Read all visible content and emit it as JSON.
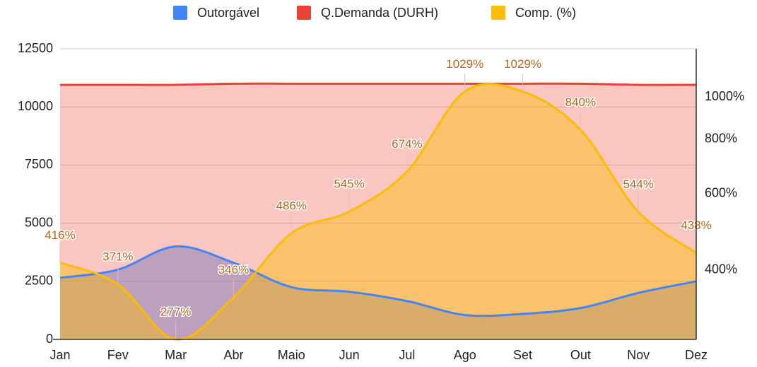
{
  "chart_data": {
    "type": "area",
    "categories": [
      "Jan",
      "Fev",
      "Mar",
      "Abr",
      "Maio",
      "Jun",
      "Jul",
      "Ago",
      "Set",
      "Out",
      "Nov",
      "Dez"
    ],
    "series": [
      {
        "name": "Outorgável",
        "color": "#4285f4",
        "values": [
          2650,
          3000,
          4000,
          3300,
          2250,
          2050,
          1650,
          1050,
          1100,
          1350,
          2000,
          2500
        ]
      },
      {
        "name": "Q.Demanda (DURH)",
        "color": "#ea4335",
        "values": [
          10950,
          10950,
          10950,
          11000,
          11000,
          11000,
          11000,
          11000,
          11000,
          11000,
          10950,
          10950
        ]
      },
      {
        "name": "Comp. (%)",
        "color": "#fbbc04",
        "axis": "y2",
        "values": [
          416,
          371,
          277,
          346,
          486,
          545,
          674,
          1029,
          1029,
          840,
          544,
          438
        ],
        "value_labels": [
          "416%",
          "371%",
          "277%",
          "346%",
          "486%",
          "545%",
          "674%",
          "1029%",
          "1029%",
          "840%",
          "544%",
          "438%"
        ]
      }
    ],
    "ylim": [
      0,
      12500
    ],
    "yticks": [
      0,
      2500,
      5000,
      7500,
      10000,
      12500
    ],
    "y2lim": [
      277,
      1290
    ],
    "y2log": true,
    "y2ticks": [
      {
        "value": 400,
        "label": "400%"
      },
      {
        "value": 600,
        "label": "600%"
      },
      {
        "value": 800,
        "label": "800%"
      },
      {
        "value": 1000,
        "label": "1000%"
      }
    ],
    "grid": true,
    "legend": "top"
  }
}
